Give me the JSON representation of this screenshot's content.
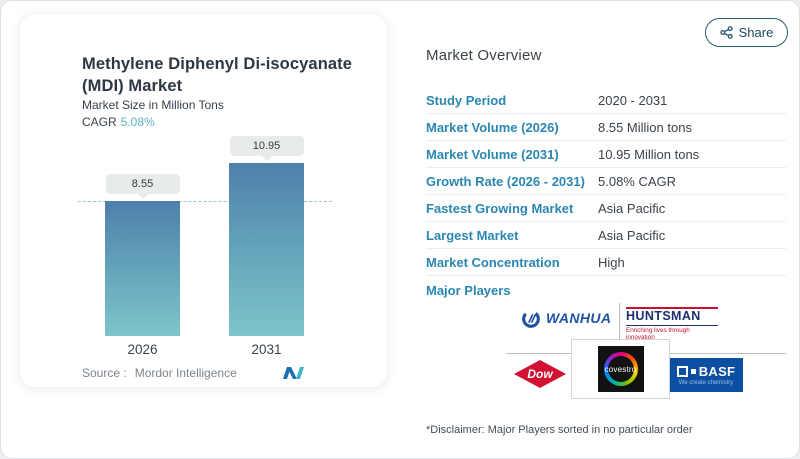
{
  "share": {
    "label": "Share"
  },
  "chart_card": {
    "title": "Methylene Diphenyl Di-isocyanate (MDI) Market",
    "subtitle": "Market Size in Million Tons",
    "cagr_label": "CAGR",
    "cagr_value": "5.08%",
    "source_label": "Source :",
    "source_brand": "Mordor Intelligence"
  },
  "chart_data": {
    "type": "bar",
    "title": "Methylene Diphenyl Di-isocyanate (MDI) Market",
    "ylabel": "Market Size in Million Tons",
    "categories": [
      "2026",
      "2031"
    ],
    "values": [
      8.55,
      10.95
    ],
    "data_labels": [
      "8.55",
      "10.95"
    ],
    "reference_line": 8.55,
    "ylim": [
      0,
      10.95
    ],
    "grid": false,
    "legend": false,
    "bar_gradient": [
      "#4e80ab",
      "#7ec4ca"
    ]
  },
  "overview": {
    "title": "Market Overview",
    "rows": [
      {
        "label": "Study Period",
        "value": "2020 - 2031"
      },
      {
        "label": "Market Volume (2026)",
        "value": "8.55 Million tons"
      },
      {
        "label": "Market Volume (2031)",
        "value": "10.95 Million tons"
      },
      {
        "label": "Growth Rate (2026 - 2031)",
        "value": "5.08% CAGR"
      },
      {
        "label": "Fastest Growing Market",
        "value": "Asia Pacific"
      },
      {
        "label": "Largest Market",
        "value": "Asia Pacific"
      },
      {
        "label": "Market Concentration",
        "value": "High"
      }
    ],
    "major_players_label": "Major Players",
    "disclaimer": "*Disclaimer: Major Players sorted in no particular order"
  },
  "players": {
    "wanhua": {
      "name": "WANHUA"
    },
    "huntsman": {
      "name": "HUNTSMAN",
      "tagline": "Enriching lives through innovation"
    },
    "dow": {
      "name": "Dow"
    },
    "covestro": {
      "name": "covestro"
    },
    "basf": {
      "name": "BASF",
      "tagline": "We create chemistry"
    }
  },
  "colors": {
    "label_blue": "#2a87b2",
    "cagr_teal": "#5fb0c2",
    "bar_top": "#4e80ab",
    "bar_bottom": "#7ec4ca",
    "share_navy": "#1d4a5e",
    "pill_bg": "#e7ece9",
    "dashed_line": "#9fc3d2"
  }
}
